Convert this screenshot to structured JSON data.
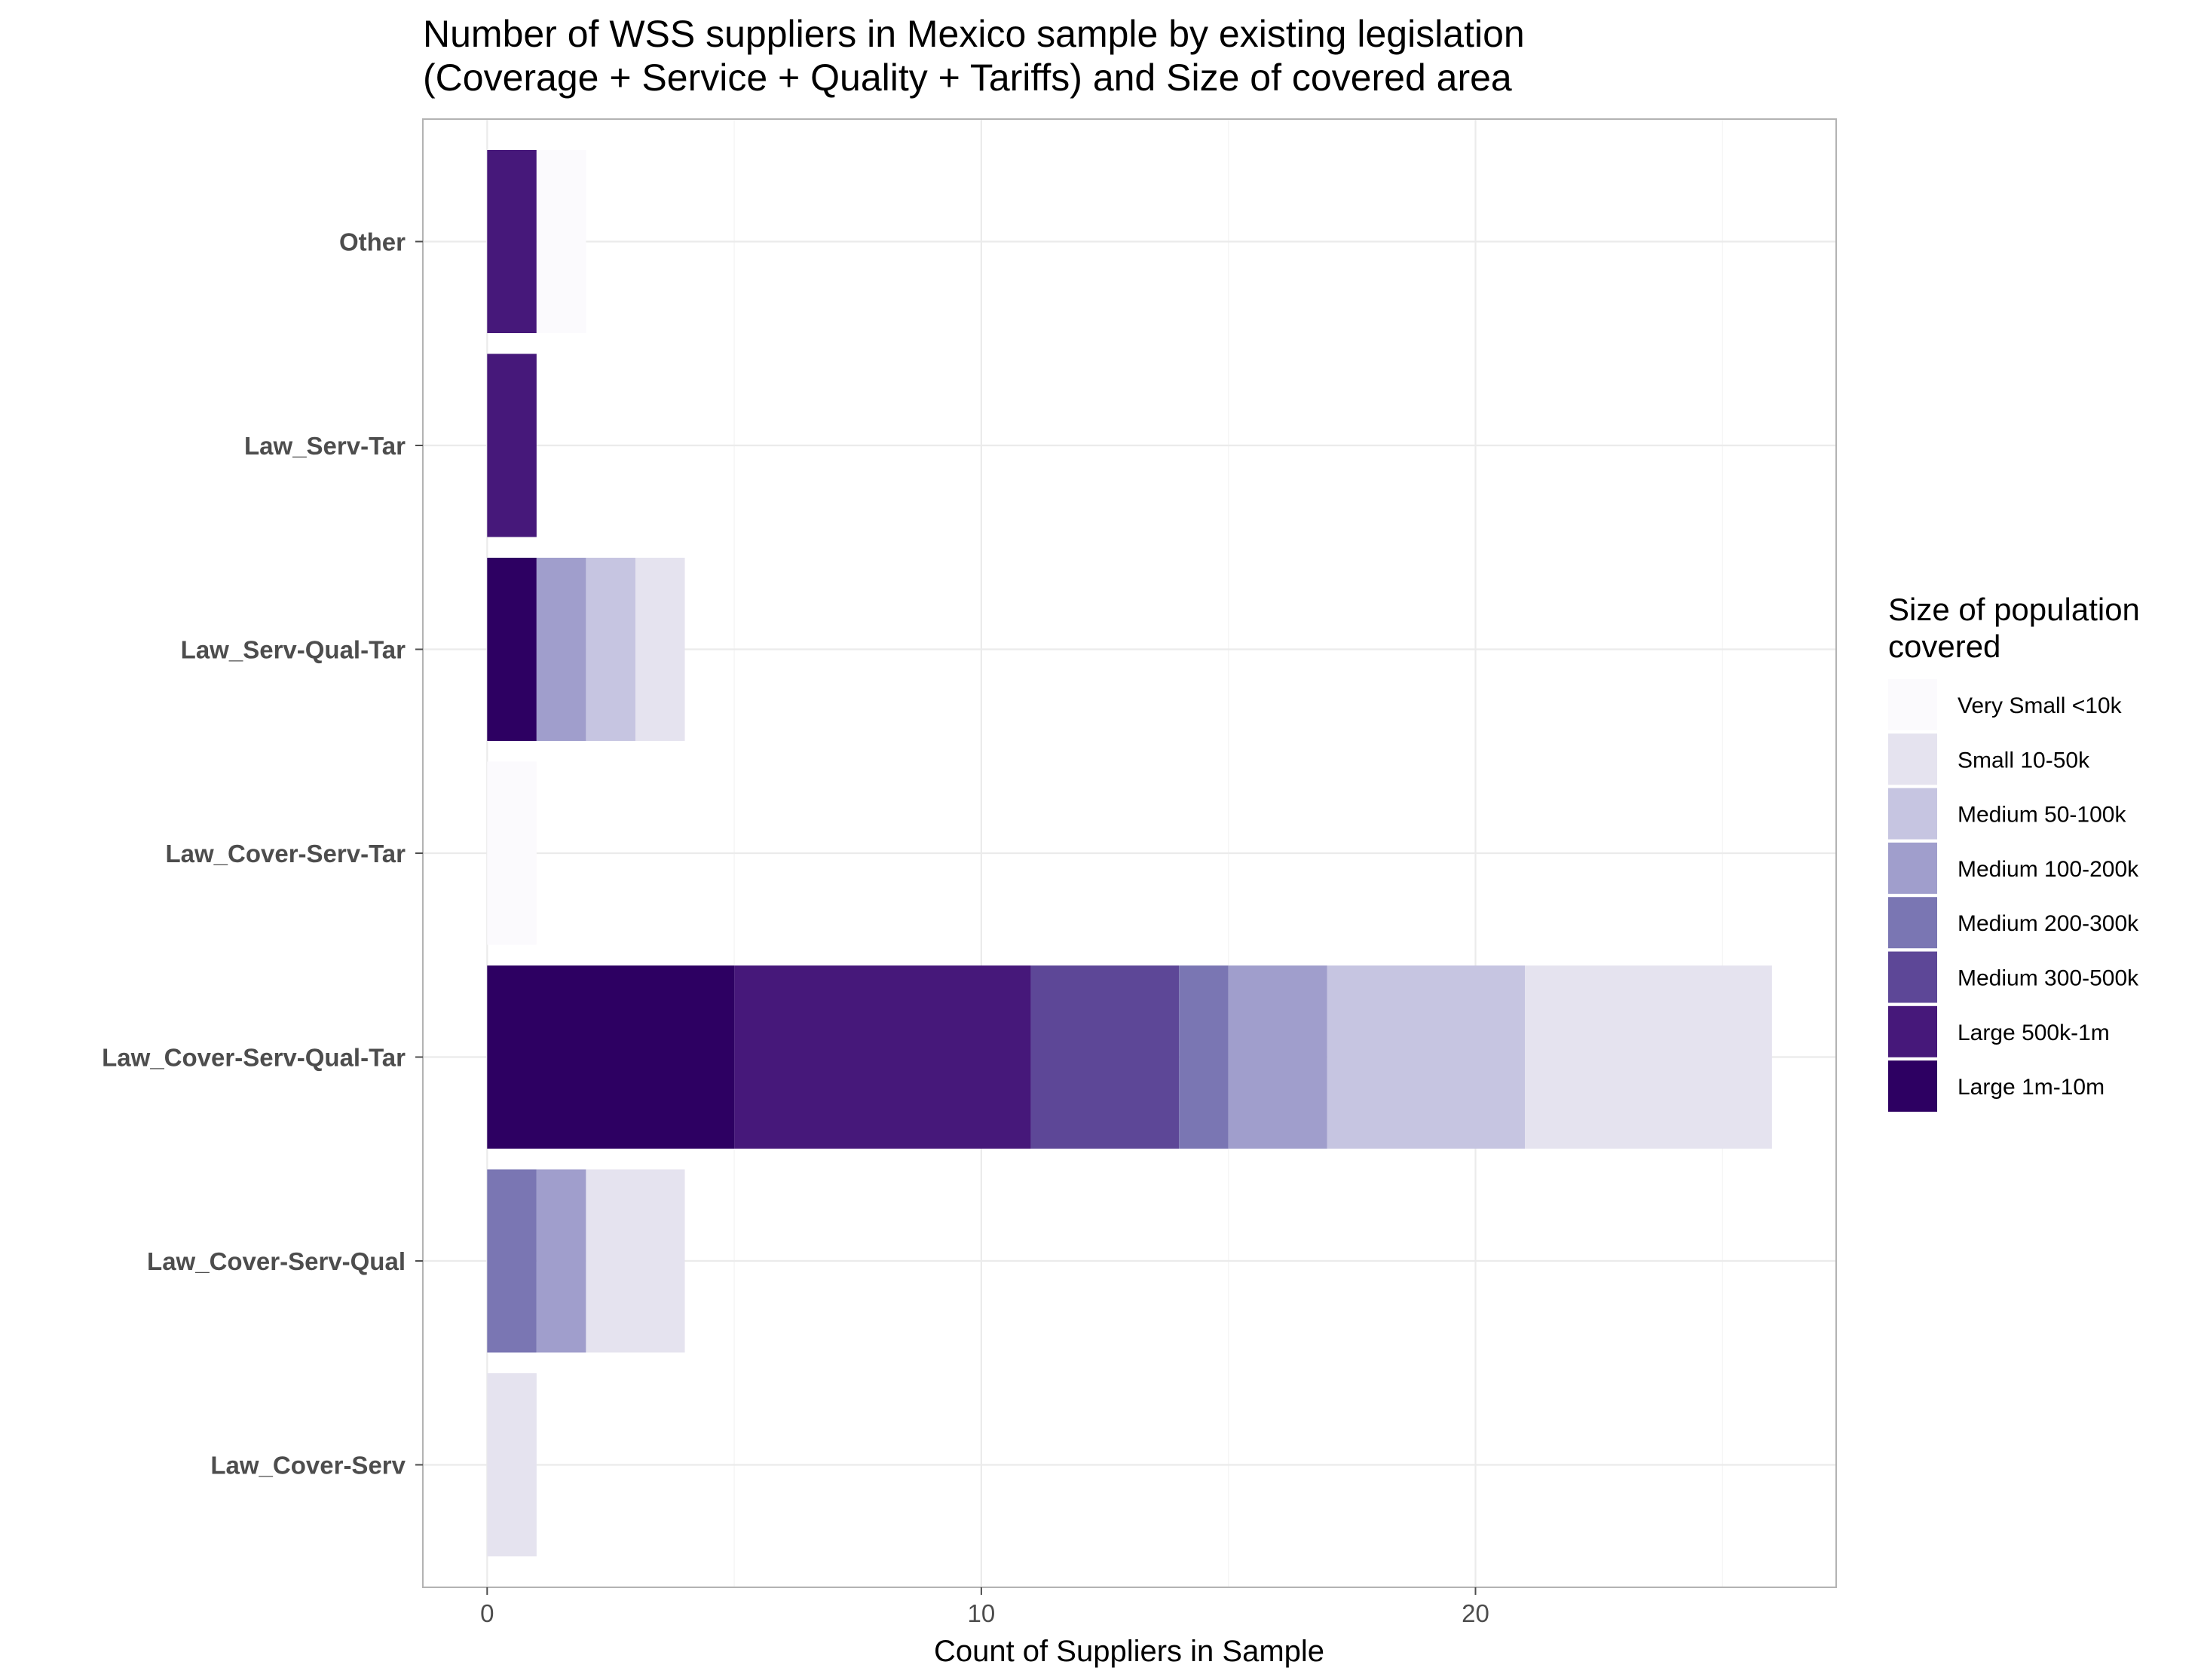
{
  "chart_data": {
    "type": "bar",
    "orientation": "horizontal",
    "stacked": true,
    "title": [
      "Number of WSS suppliers in Mexico sample by existing legislation",
      "(Coverage + Service + Quality + Tariffs) and Size of covered area"
    ],
    "xlabel": "Count of Suppliers in Sample",
    "ylabel": "",
    "xlim": [
      -1.3,
      27.3
    ],
    "xticks": [
      0,
      10,
      20
    ],
    "grid": true,
    "legend_position": "right",
    "categories": [
      "Law_Cover-Serv",
      "Law_Cover-Serv-Qual",
      "Law_Cover-Serv-Qual-Tar",
      "Law_Cover-Serv-Tar",
      "Law_Serv-Qual-Tar",
      "Law_Serv-Tar",
      "Other"
    ],
    "legend": {
      "title": [
        "Size of population",
        "covered"
      ],
      "order": [
        "Very Small <10k",
        "Small 10-50k",
        "Medium 50-100k",
        "Medium 100-200k",
        "Medium 200-300k",
        "Medium 300-500k",
        "Large 500k-1m",
        "Large 1m-10m"
      ]
    },
    "series": [
      {
        "name": "Large 1m-10m",
        "color": "#2d0062",
        "values": [
          0,
          0,
          5,
          0,
          1,
          0,
          0
        ]
      },
      {
        "name": "Large 500k-1m",
        "color": "#46187a",
        "values": [
          0,
          0,
          6,
          0,
          0,
          1,
          1
        ]
      },
      {
        "name": "Medium 300-500k",
        "color": "#5d4797",
        "values": [
          0,
          0,
          3,
          0,
          0,
          0,
          0
        ]
      },
      {
        "name": "Medium 200-300k",
        "color": "#7a76b3",
        "values": [
          0,
          1,
          1,
          0,
          0,
          0,
          0
        ]
      },
      {
        "name": "Medium 100-200k",
        "color": "#a09ecc",
        "values": [
          0,
          1,
          2,
          0,
          1,
          0,
          0
        ]
      },
      {
        "name": "Medium 50-100k",
        "color": "#c6c5e1",
        "values": [
          0,
          0,
          4,
          0,
          1,
          0,
          0
        ]
      },
      {
        "name": "Small 10-50k",
        "color": "#e5e3ef",
        "values": [
          1,
          2,
          5,
          0,
          1,
          0,
          0
        ]
      },
      {
        "name": "Very Small <10k",
        "color": "#fbfafd",
        "values": [
          0,
          0,
          0,
          1,
          0,
          0,
          1
        ]
      }
    ]
  }
}
